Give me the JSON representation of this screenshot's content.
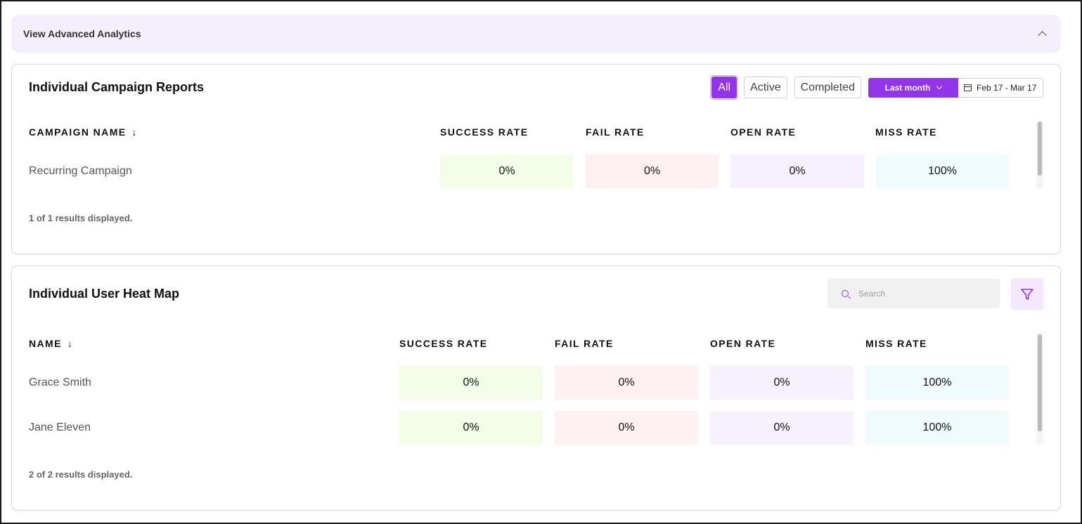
{
  "accordion": {
    "title": "View Advanced Analytics"
  },
  "campaign_reports": {
    "title": "Individual Campaign Reports",
    "filters": [
      "All",
      "Active",
      "Completed"
    ],
    "active_filter": "All",
    "range_label": "Last month",
    "date_range": "Feb 17 - Mar 17",
    "columns": {
      "name": "CAMPAIGN NAME",
      "success": "SUCCESS RATE",
      "fail": "FAIL RATE",
      "open": "OPEN RATE",
      "miss": "MISS RATE"
    },
    "rows": [
      {
        "name": "Recurring Campaign",
        "success": "0%",
        "fail": "0%",
        "open": "0%",
        "miss": "100%"
      }
    ],
    "footer": "1 of 1 results displayed."
  },
  "heat_map": {
    "title": "Individual User Heat Map",
    "search_placeholder": "Search",
    "columns": {
      "name": "NAME",
      "success": "SUCCESS RATE",
      "fail": "FAIL RATE",
      "open": "OPEN RATE",
      "miss": "MISS RATE"
    },
    "rows": [
      {
        "name": "Grace Smith",
        "success": "0%",
        "fail": "0%",
        "open": "0%",
        "miss": "100%"
      },
      {
        "name": "Jane Eleven",
        "success": "0%",
        "fail": "0%",
        "open": "0%",
        "miss": "100%"
      }
    ],
    "footer": "2 of 2 results displayed."
  },
  "colors": {
    "accent": "#9333ea",
    "success_bg": "#f3fde8",
    "fail_bg": "#fff0f2",
    "open_bg": "#f6f1fd",
    "miss_bg": "#f0fbfd"
  },
  "icons": {
    "accordion": "chevron-up-icon",
    "sort": "arrow-down-icon",
    "range": "chevron-down-icon",
    "date": "calendar-icon",
    "search": "search-icon",
    "filter": "filter-icon"
  }
}
